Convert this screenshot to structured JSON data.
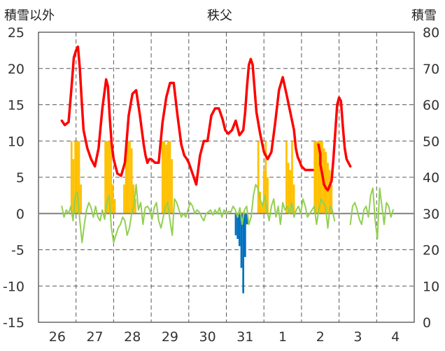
{
  "chart_data": {
    "type": "line",
    "title": "秩父",
    "ylabel_left": "積雪以外",
    "ylabel_right": "積雪",
    "grid": true,
    "x_categories": [
      "26",
      "27",
      "28",
      "29",
      "30",
      "31",
      "1",
      "2",
      "3",
      "4"
    ],
    "ylim_left": [
      -15,
      25
    ],
    "yticks_left": [
      "25",
      "20",
      "15",
      "10",
      "5",
      "0",
      "-5",
      "-10",
      "-15"
    ],
    "ylim_right": [
      0,
      80
    ],
    "yticks_right": [
      "80",
      "70",
      "60",
      "50",
      "40",
      "30",
      "20",
      "10",
      "0"
    ],
    "colors": {
      "temperature": "#ff0000",
      "sunshine": "#ffc000",
      "precipitation": "#0070c0",
      "wind": "#92d050",
      "zero_line": "#808080",
      "grid": "#595959"
    },
    "series": [
      {
        "key": "temperature",
        "axis": "left",
        "note_x_unit": "day index (26=0 … 4=9)",
        "x": [
          0.62,
          0.7,
          0.8,
          0.88,
          0.94,
          1.0,
          1.05,
          1.1,
          1.15,
          1.2,
          1.3,
          1.4,
          1.5,
          1.6,
          1.7,
          1.8,
          1.85,
          1.9,
          1.95,
          2.0,
          2.1,
          2.2,
          2.3,
          2.4,
          2.5,
          2.6,
          2.7,
          2.8,
          2.85,
          2.9,
          2.95,
          3.0,
          3.1,
          3.2,
          3.3,
          3.4,
          3.5,
          3.6,
          3.7,
          3.8,
          3.88,
          3.95,
          4.0,
          4.1,
          4.2,
          4.3,
          4.4,
          4.5,
          4.6,
          4.7,
          4.8,
          4.9,
          4.97,
          5.05,
          5.15,
          5.25,
          5.35,
          5.45,
          5.5,
          5.55,
          5.6,
          5.65,
          5.7,
          5.8,
          5.9,
          6.0,
          6.05,
          6.1,
          6.2,
          6.3,
          6.4,
          6.5,
          6.6,
          6.7,
          6.8,
          6.85,
          6.9,
          6.95,
          7.0,
          7.1,
          7.2,
          7.3,
          7.4,
          7.45,
          7.5,
          7.5,
          7.55,
          7.6,
          7.65,
          7.7,
          7.8,
          7.85,
          7.95,
          8.0,
          8.05,
          8.1,
          8.15,
          8.2,
          8.3
        ],
        "y": [
          12.8,
          12.2,
          12.6,
          17.5,
          21.5,
          22.5,
          23.0,
          20.0,
          15.5,
          11.5,
          9.0,
          7.5,
          6.5,
          9.0,
          14.5,
          18.5,
          17.5,
          13.0,
          9.5,
          7.5,
          5.5,
          5.2,
          7.0,
          13.5,
          16.5,
          17.0,
          13.5,
          9.5,
          8.0,
          7.0,
          7.5,
          7.5,
          7.0,
          7.0,
          12.5,
          16.0,
          18.0,
          18.0,
          13.5,
          9.5,
          8.0,
          7.5,
          7.0,
          5.5,
          4.0,
          8.0,
          10.0,
          10.0,
          13.5,
          14.5,
          14.5,
          13.0,
          11.5,
          11.0,
          11.5,
          12.8,
          10.8,
          11.5,
          14.0,
          17.5,
          20.5,
          21.3,
          20.5,
          14.0,
          11.0,
          8.5,
          8.0,
          7.5,
          8.5,
          12.5,
          17.0,
          18.8,
          16.5,
          14.0,
          11.5,
          9.0,
          7.8,
          7.2,
          6.5,
          6.0,
          6.0,
          6.0,
          null,
          9.5,
          8.2,
          6.8,
          5.5,
          4.0,
          3.5,
          3.2,
          4.5,
          7.5,
          15.0,
          16.0,
          15.5,
          12.0,
          9.0,
          7.5,
          6.5
        ],
        "x_note": "segments: null marks a gap"
      },
      {
        "key": "sunshine",
        "axis": "left",
        "type": "bar",
        "x": [
          0.88,
          0.93,
          0.98,
          1.03,
          1.08,
          1.13,
          1.78,
          1.83,
          1.88,
          1.93,
          1.98,
          2.03,
          2.28,
          2.33,
          2.38,
          2.43,
          2.48,
          2.53,
          2.58,
          3.3,
          3.35,
          3.4,
          3.45,
          3.5,
          3.55,
          5.42,
          5.47,
          5.85,
          5.9,
          5.95,
          6.0,
          6.05,
          6.1,
          6.6,
          6.65,
          6.7,
          6.75,
          6.8,
          7.35,
          7.4,
          7.45,
          7.5,
          7.55,
          7.6,
          7.65,
          7.7,
          7.75,
          7.8
        ],
        "y": [
          10.0,
          7.5,
          10.0,
          10.0,
          10.0,
          4.0,
          10.0,
          10.0,
          10.0,
          10.0,
          4.0,
          2.0,
          4.0,
          9.5,
          10.0,
          10.0,
          9.0,
          4.0,
          2.0,
          10.0,
          10.0,
          9.5,
          10.0,
          10.0,
          7.5,
          0.2,
          0.3,
          10.0,
          3.0,
          1.0,
          6.0,
          10.0,
          5.0,
          10.0,
          7.0,
          6.0,
          10.0,
          4.0,
          10.0,
          10.0,
          10.0,
          10.0,
          10.0,
          9.0,
          8.5,
          7.0,
          6.0,
          4.0
        ]
      },
      {
        "key": "precipitation",
        "axis": "left",
        "type": "bar",
        "x": [
          5.25,
          5.3,
          5.35,
          5.4,
          5.45,
          5.5,
          5.55
        ],
        "y": [
          -3.0,
          -3.5,
          -4.5,
          -7.5,
          -11.0,
          -6.0,
          -1.5
        ]
      },
      {
        "key": "wind",
        "axis": "left",
        "x": [
          0.62,
          0.68,
          0.74,
          0.8,
          0.86,
          0.92,
          0.98,
          1.04,
          1.1,
          1.16,
          1.22,
          1.28,
          1.34,
          1.4,
          1.46,
          1.52,
          1.58,
          1.64,
          1.7,
          1.76,
          1.82,
          1.88,
          1.94,
          2.0,
          2.06,
          2.12,
          2.18,
          2.24,
          2.3,
          2.36,
          2.42,
          2.48,
          2.54,
          2.6,
          2.66,
          2.72,
          2.78,
          2.84,
          2.9,
          2.96,
          3.02,
          3.08,
          3.14,
          3.2,
          3.26,
          3.32,
          3.38,
          3.44,
          3.5,
          3.56,
          3.62,
          3.68,
          3.74,
          3.8,
          3.86,
          3.92,
          3.98,
          4.04,
          4.1,
          4.16,
          4.22,
          4.28,
          4.34,
          4.4,
          4.46,
          4.52,
          4.58,
          4.64,
          4.7,
          4.76,
          4.82,
          4.88,
          4.94,
          5.0,
          5.06,
          5.12,
          5.18,
          5.24,
          5.3,
          5.36,
          5.42,
          5.48,
          5.54,
          5.6,
          5.66,
          5.72,
          5.78,
          5.84,
          5.9,
          5.96,
          6.02,
          6.08,
          6.14,
          6.2,
          6.26,
          6.32,
          6.38,
          6.44,
          6.5,
          6.56,
          6.62,
          6.68,
          6.74,
          6.8,
          6.86,
          6.92,
          6.98,
          7.04,
          7.1,
          7.16,
          7.22,
          7.28,
          7.34,
          7.4,
          7.46,
          7.52,
          7.58,
          7.64,
          7.7,
          7.76,
          7.82,
          7.88,
          null,
          8.3,
          8.36,
          8.42,
          8.48,
          8.54,
          8.6,
          8.66,
          8.72,
          8.78,
          8.84,
          8.9,
          8.96,
          9.02,
          9.08,
          9.14,
          9.2,
          9.26,
          9.32,
          9.38,
          9.44
        ],
        "y": [
          1.0,
          -0.5,
          0.5,
          0.0,
          1.0,
          -1.0,
          2.5,
          3.0,
          -1.0,
          -4.0,
          -1.5,
          0.5,
          1.5,
          0.8,
          -0.5,
          1.0,
          -0.5,
          -1.0,
          0.5,
          -0.8,
          1.5,
          2.5,
          -2.0,
          -4.0,
          -3.0,
          -2.0,
          -1.5,
          -0.5,
          -1.0,
          -3.0,
          -2.0,
          0.0,
          1.0,
          4.0,
          0.5,
          1.5,
          -1.5,
          0.8,
          1.0,
          0.5,
          -0.8,
          0.8,
          1.5,
          -1.0,
          -2.0,
          -0.5,
          1.0,
          1.5,
          -1.0,
          -3.0,
          2.0,
          1.5,
          0.5,
          -0.5,
          0.0,
          -0.5,
          0.5,
          1.5,
          1.0,
          0.0,
          0.5,
          0.2,
          -0.5,
          -1.0,
          0.0,
          0.2,
          0.5,
          -0.2,
          0.5,
          0.0,
          0.8,
          -0.5,
          0.5,
          0.0,
          0.3,
          0.2,
          1.0,
          0.5,
          -0.5,
          0.8,
          -1.5,
          0.5,
          1.0,
          -1.5,
          -0.5,
          2.5,
          4.0,
          3.5,
          2.0,
          1.0,
          2.5,
          0.5,
          -1.0,
          1.0,
          2.0,
          -0.5,
          1.0,
          -1.5,
          1.5,
          0.5,
          1.0,
          0.0,
          1.5,
          -0.5,
          0.5,
          1.0,
          0.0,
          2.0,
          1.0,
          -0.5,
          0.0,
          0.5,
          1.0,
          -1.5,
          0.5,
          2.0,
          1.5,
          1.0,
          -2.0,
          1.0,
          0.5,
          -1.0,
          null,
          -1.5,
          1.0,
          1.5,
          0.5,
          -0.8,
          -1.5,
          0.5,
          1.0,
          -0.5,
          2.5,
          3.5,
          -1.0,
          -3.5,
          3.5,
          1.0,
          -1.5,
          1.5,
          1.0,
          -0.5,
          0.5
        ]
      }
    ]
  }
}
